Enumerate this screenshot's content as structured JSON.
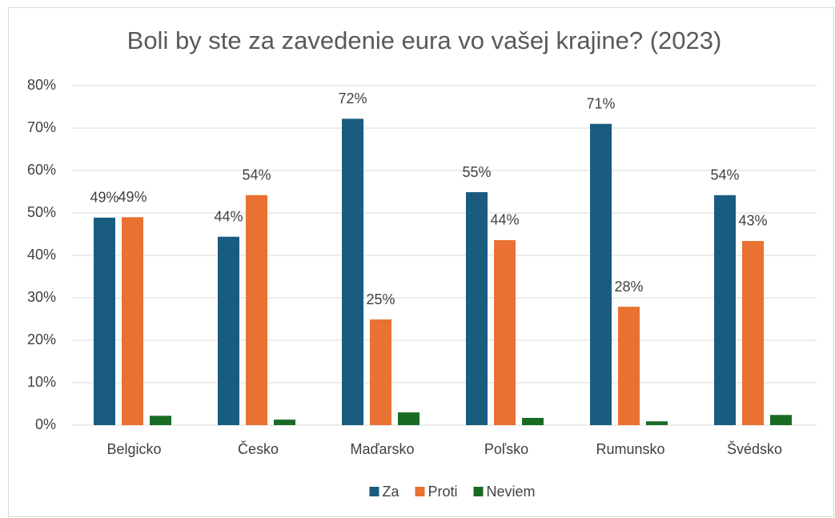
{
  "chart_data": {
    "type": "bar",
    "title": "Boli by ste za zavedenie eura vo vašej krajine? (2023)",
    "categories": [
      "Belgicko",
      "Česko",
      "Maďarsko",
      "Poľsko",
      "Rumunsko",
      "Švédsko"
    ],
    "series": [
      {
        "name": "Za",
        "color": "#195c80",
        "values": [
          48.9,
          44.4,
          72.2,
          54.9,
          71.0,
          54.2
        ],
        "value_labels": [
          "49%",
          "44%",
          "72%",
          "55%",
          "71%",
          "54%"
        ]
      },
      {
        "name": "Proti",
        "color": "#e97132",
        "values": [
          49.0,
          54.2,
          24.9,
          43.6,
          27.9,
          43.4
        ],
        "value_labels": [
          "49%",
          "54%",
          "25%",
          "44%",
          "28%",
          "43%"
        ]
      },
      {
        "name": "Neviem",
        "color": "#196b24",
        "values": [
          2.2,
          1.3,
          3.0,
          1.7,
          0.9,
          2.4
        ]
      }
    ],
    "ylim": [
      0,
      80
    ],
    "yticks": [
      {
        "value": 0,
        "label": "0%"
      },
      {
        "value": 10,
        "label": "10%"
      },
      {
        "value": 20,
        "label": "20%"
      },
      {
        "value": 30,
        "label": "30%"
      },
      {
        "value": 40,
        "label": "40%"
      },
      {
        "value": 50,
        "label": "50%"
      },
      {
        "value": 60,
        "label": "60%"
      },
      {
        "value": 70,
        "label": "70%"
      },
      {
        "value": 80,
        "label": "80%"
      }
    ],
    "grid": true,
    "legend": "bottom"
  }
}
